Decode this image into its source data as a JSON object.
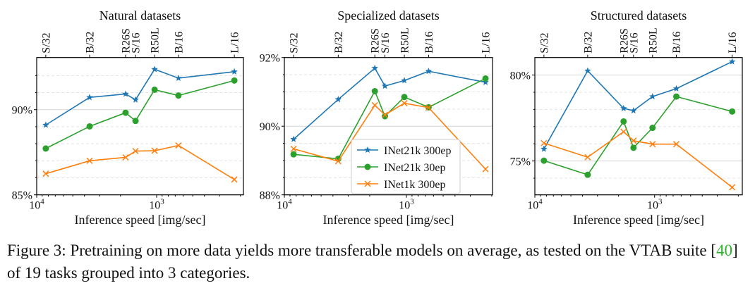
{
  "chart_data": [
    {
      "type": "line",
      "title": "Natural datasets",
      "xlabel": "Inference speed [img/sec]",
      "ylabel": "",
      "xscale": "log-reversed",
      "xlim": [
        10000,
        189
      ],
      "ylim": [
        85,
        93.06
      ],
      "yticks": [
        {
          "value": 90,
          "label": "90%"
        },
        {
          "value": 85,
          "label": "85%"
        }
      ],
      "yminor": [
        86,
        87,
        88,
        89,
        91,
        92
      ],
      "series": [
        {
          "name": "INet21k 300ep",
          "values": [
            89.1,
            90.72,
            90.92,
            90.58,
            92.37,
            91.85,
            92.23
          ]
        },
        {
          "name": "INet21k 30ep",
          "values": [
            87.72,
            89.02,
            89.82,
            89.34,
            91.17,
            90.83,
            91.71
          ]
        },
        {
          "name": "INet1k 300ep",
          "values": [
            86.24,
            87.0,
            87.2,
            87.57,
            87.59,
            87.9,
            85.9
          ]
        }
      ],
      "legend": null
    },
    {
      "type": "line",
      "title": "Specialized datasets",
      "xlabel": "Inference speed [img/sec]",
      "ylabel": "",
      "xscale": "log-reversed",
      "xlim": [
        10000,
        189
      ],
      "ylim": [
        88,
        92
      ],
      "yticks": [
        {
          "value": 92,
          "label": "92%"
        },
        {
          "value": 90,
          "label": "90%"
        },
        {
          "value": 88,
          "label": "88%"
        }
      ],
      "yminor": [
        88.5,
        89,
        89.5,
        90.5,
        91,
        91.5
      ],
      "series": [
        {
          "name": "INet21k 300ep",
          "values": [
            89.62,
            90.78,
            91.69,
            91.17,
            91.33,
            91.6,
            91.28
          ]
        },
        {
          "name": "INet21k 30ep",
          "values": [
            89.18,
            89.05,
            91.02,
            90.29,
            90.85,
            90.55,
            91.39
          ]
        },
        {
          "name": "INet1k 300ep",
          "values": [
            89.34,
            88.98,
            90.61,
            90.33,
            90.67,
            90.54,
            88.75
          ]
        }
      ],
      "legend": "lower-center"
    },
    {
      "type": "line",
      "title": "Structured datasets",
      "xlabel": "Inference speed [img/sec]",
      "ylabel": "",
      "xscale": "log-reversed",
      "xlim": [
        10000,
        189
      ],
      "ylim": [
        73.03,
        81.02
      ],
      "yticks": [
        {
          "value": 80,
          "label": "80%"
        },
        {
          "value": 75,
          "label": "75%"
        }
      ],
      "yminor": [
        74,
        76,
        77,
        78,
        79
      ],
      "series": [
        {
          "name": "INet21k 300ep",
          "values": [
            75.7,
            80.25,
            78.06,
            77.93,
            78.75,
            79.21,
            80.78
          ]
        },
        {
          "name": "INet21k 30ep",
          "values": [
            75.02,
            74.2,
            77.3,
            75.77,
            76.93,
            78.75,
            77.88
          ]
        },
        {
          "name": "INet1k 300ep",
          "values": [
            76.04,
            75.22,
            76.7,
            76.18,
            75.98,
            75.98,
            73.47
          ]
        }
      ],
      "legend": null
    }
  ],
  "models": [
    "S/32",
    "B/32",
    "R26S",
    "S/16",
    "R50L",
    "B/16",
    "L/16"
  ],
  "model_speeds": [
    8400,
    3620,
    1815,
    1500,
    1040,
    658,
    225
  ],
  "xticks": [
    {
      "value": 10000,
      "base": "10",
      "exp": "4"
    },
    {
      "value": 1000,
      "base": "10",
      "exp": "3"
    }
  ],
  "series_style": [
    {
      "color": "#1f77b4",
      "marker": "star"
    },
    {
      "color": "#2ca02c",
      "marker": "circle"
    },
    {
      "color": "#ff7f0e",
      "marker": "x"
    }
  ],
  "caption": {
    "prefix": "Figure 3: Pretraining on more data yields more transferable models on average, as tested on the VTAB suite [",
    "cite": "40",
    "suffix": "] of 19 tasks grouped into 3 categories."
  }
}
